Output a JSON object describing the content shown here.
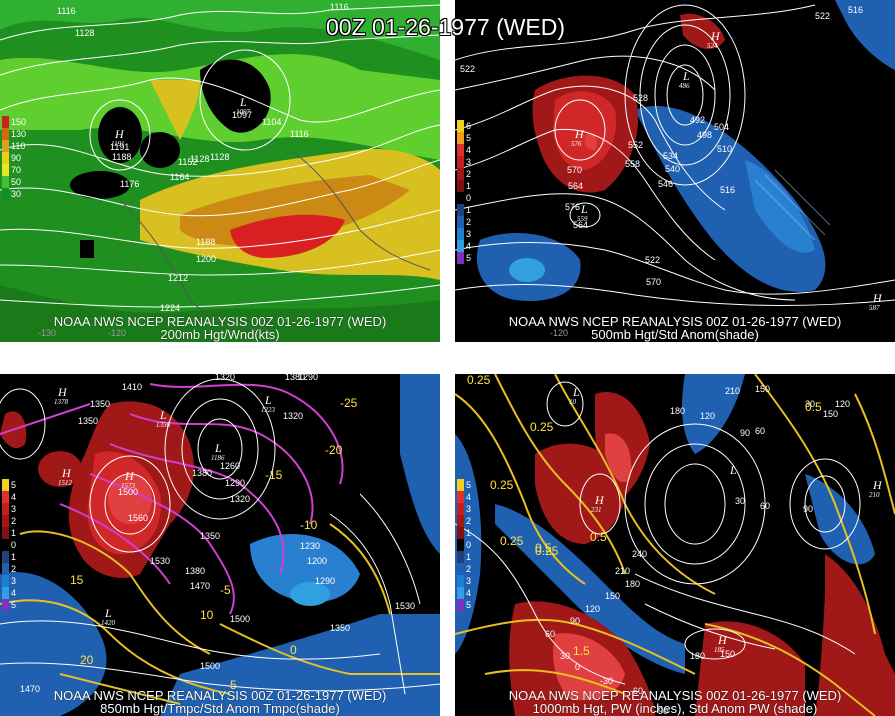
{
  "title": "00Z 01-26-1977 (WED)",
  "panels": [
    {
      "id": "p200",
      "caption_line1": "NOAA NWS NCEP REANALYSIS 00Z 01-26-1977 (WED)",
      "caption_line2": "200mb Hgt/Wnd(kts)",
      "legend": [
        {
          "label": "150",
          "color": "#cc2020"
        },
        {
          "label": "130",
          "color": "#d06a10"
        },
        {
          "label": "110",
          "color": "#d8a020"
        },
        {
          "label": "90",
          "color": "#e8d020"
        },
        {
          "label": "70",
          "color": "#e8e820"
        },
        {
          "label": "50",
          "color": "#40c030"
        },
        {
          "label": "30",
          "color": "#109020"
        }
      ],
      "contour_labels": [
        "1116",
        "1128",
        "1116",
        "1104",
        "1097",
        "1116",
        "1128",
        "1188",
        "1191",
        "1152",
        "1164",
        "1176",
        "1188",
        "1200",
        "1212",
        "1224",
        "1128"
      ],
      "highs_lows": [
        {
          "letter": "H",
          "value": "1191"
        },
        {
          "letter": "L",
          "value": "1097"
        }
      ],
      "axis_labels": [
        "-130",
        "-120"
      ]
    },
    {
      "id": "p500",
      "caption_line1": "NOAA NWS NCEP REANALYSIS 00Z 01-26-1977 (WED)",
      "caption_line2": "500mb Hgt/Std Anom(shade)",
      "legend": [
        {
          "label": "6",
          "color": "#f0d020"
        },
        {
          "label": "5",
          "color": "#f0a020"
        },
        {
          "label": "4",
          "color": "#e03030"
        },
        {
          "label": "3",
          "color": "#c02020"
        },
        {
          "label": "2",
          "color": "#a01818"
        },
        {
          "label": "1",
          "color": "#801010"
        },
        {
          "label": "0",
          "color": "#000000"
        },
        {
          "label": "1",
          "color": "#204080"
        },
        {
          "label": "2",
          "color": "#2060b0"
        },
        {
          "label": "3",
          "color": "#2080d0"
        },
        {
          "label": "4",
          "color": "#30a0e0"
        },
        {
          "label": "5",
          "color": "#8030c0"
        }
      ],
      "contour_labels": [
        "522",
        "516",
        "522",
        "528",
        "552",
        "558",
        "534",
        "540",
        "546",
        "570",
        "564",
        "492",
        "498",
        "504",
        "510",
        "516",
        "522",
        "570",
        "576",
        "564"
      ],
      "highs_lows": [
        {
          "letter": "H",
          "value": "576"
        },
        {
          "letter": "L",
          "value": "559"
        },
        {
          "letter": "L",
          "value": "486"
        },
        {
          "letter": "H",
          "value": "524"
        },
        {
          "letter": "H",
          "value": "587"
        }
      ],
      "axis_labels": [
        "-120"
      ]
    },
    {
      "id": "p850",
      "caption_line1": "NOAA NWS NCEP REANALYSIS 00Z 01-26-1977 (WED)",
      "caption_line2": "850mb Hgt/Tmpc/Std Anom Tmpc(shade)",
      "legend": [
        {
          "label": "5",
          "color": "#f0d020"
        },
        {
          "label": "4",
          "color": "#e03030"
        },
        {
          "label": "3",
          "color": "#c02020"
        },
        {
          "label": "2",
          "color": "#a01818"
        },
        {
          "label": "1",
          "color": "#801010"
        },
        {
          "label": "0",
          "color": "#000000"
        },
        {
          "label": "1",
          "color": "#204080"
        },
        {
          "label": "2",
          "color": "#2060b0"
        },
        {
          "label": "3",
          "color": "#2080d0"
        },
        {
          "label": "4",
          "color": "#30a0e0"
        },
        {
          "label": "5",
          "color": "#8030c0"
        }
      ],
      "contour_labels": [
        "1320",
        "1380",
        "1410",
        "1350",
        "1320",
        "1350",
        "1380",
        "1290",
        "1500",
        "1560",
        "1530",
        "1500",
        "1470",
        "1380",
        "1350",
        "1320",
        "1290",
        "1260",
        "1230",
        "1200",
        "1290",
        "1350",
        "1530",
        "1500",
        "1470"
      ],
      "temp_labels": [
        "-25",
        "-20",
        "-15",
        "-10",
        "-5",
        "0",
        "5",
        "10",
        "15",
        "20"
      ],
      "highs_lows": [
        {
          "letter": "H",
          "value": "1378"
        },
        {
          "letter": "H",
          "value": "1512"
        },
        {
          "letter": "H",
          "value": "1573"
        },
        {
          "letter": "L",
          "value": "1356"
        },
        {
          "letter": "L",
          "value": "1186"
        },
        {
          "letter": "L",
          "value": "1223"
        },
        {
          "letter": "L",
          "value": "1420"
        }
      ]
    },
    {
      "id": "p1000",
      "caption_line1": "NOAA NWS NCEP REANALYSIS 00Z 01-26-1977 (WED)",
      "caption_line2": "1000mb Hgt, PW (inches), Std Anom PW (shade)",
      "legend": [
        {
          "label": "5",
          "color": "#f0d020"
        },
        {
          "label": "4",
          "color": "#e03030"
        },
        {
          "label": "3",
          "color": "#c02020"
        },
        {
          "label": "2",
          "color": "#a01818"
        },
        {
          "label": "1",
          "color": "#801010"
        },
        {
          "label": "0",
          "color": "#000000"
        },
        {
          "label": "1",
          "color": "#204080"
        },
        {
          "label": "2",
          "color": "#2060b0"
        },
        {
          "label": "3",
          "color": "#2080d0"
        },
        {
          "label": "4",
          "color": "#30a0e0"
        },
        {
          "label": "5",
          "color": "#8030c0"
        }
      ],
      "contour_labels": [
        "210",
        "180",
        "150",
        "120",
        "90",
        "60",
        "30",
        "150",
        "120",
        "90",
        "60",
        "30",
        "240",
        "210",
        "180",
        "150",
        "120",
        "90",
        "60",
        "30",
        "0",
        "-30",
        "-60",
        "-90",
        "180",
        "150"
      ],
      "pw_labels": [
        "0.25",
        "0.25",
        "0.25",
        "0.25",
        "0.5",
        "0.25",
        "0.5",
        "1.5",
        "0.5"
      ],
      "highs_lows": [
        {
          "letter": "L",
          "value": "10"
        },
        {
          "letter": "H",
          "value": "231"
        },
        {
          "letter": "H",
          "value": "185"
        },
        {
          "letter": "L",
          "value": ""
        },
        {
          "letter": "H",
          "value": "210"
        }
      ]
    }
  ]
}
